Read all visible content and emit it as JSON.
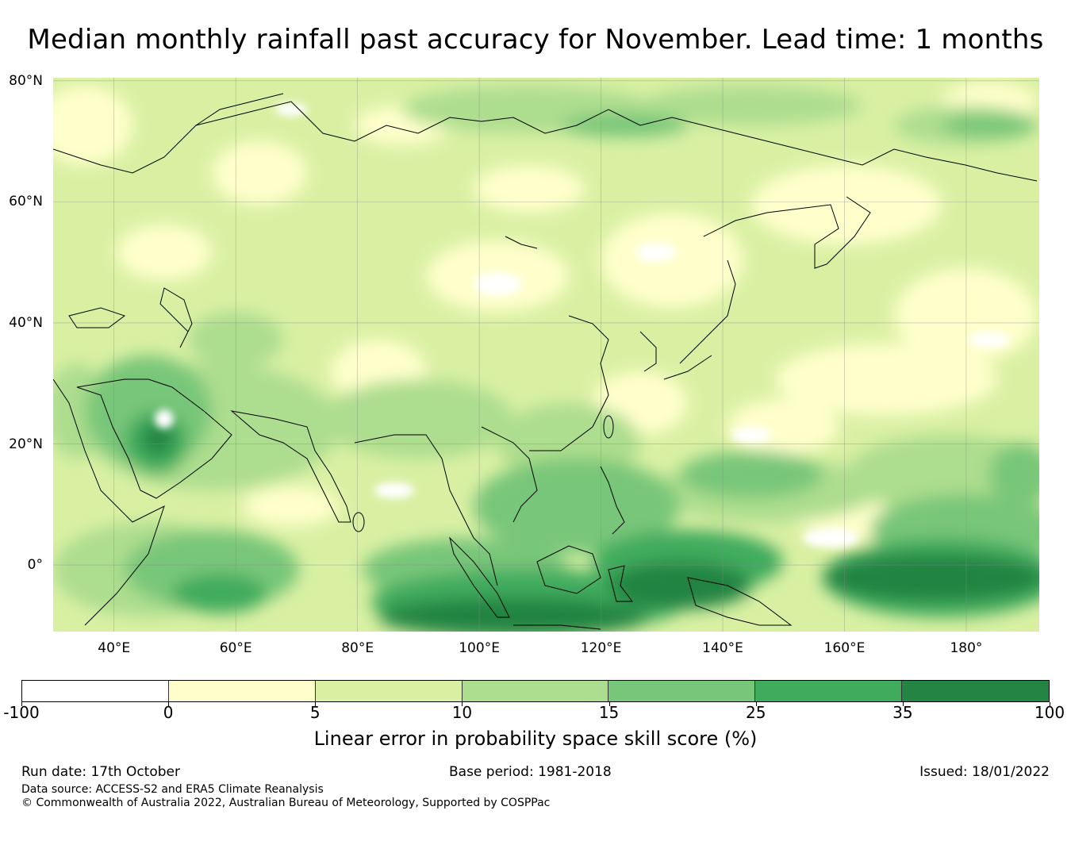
{
  "title": "Median monthly rainfall past accuracy for November. Lead time: 1 months",
  "map": {
    "lat_labels": [
      "80°N",
      "60°N",
      "40°N",
      "20°N",
      "0°"
    ],
    "lon_labels": [
      "40°E",
      "60°E",
      "80°E",
      "100°E",
      "120°E",
      "140°E",
      "160°E",
      "180°"
    ],
    "lat_values": [
      80,
      60,
      40,
      20,
      0
    ],
    "lon_values": [
      40,
      60,
      80,
      100,
      120,
      140,
      160,
      180
    ],
    "extent": {
      "lon_min": 30,
      "lon_max": 192,
      "lat_min": -11,
      "lat_max": 80.5
    }
  },
  "colorbar": {
    "ticks": [
      "-100",
      "0",
      "5",
      "10",
      "15",
      "25",
      "35",
      "100"
    ],
    "colors": [
      "#ffffff",
      "#ffffcc",
      "#d9f0a3",
      "#addd8e",
      "#78c679",
      "#41ab5d",
      "#238443"
    ],
    "label": "Linear error in probability space skill score (%)"
  },
  "footer": {
    "run_date": "Run date: 17th October",
    "base_period": "Base period: 1981-2018",
    "issued": "Issued: 18/01/2022",
    "data_source": "Data source: ACCESS-S2 and ERA5 Climate Reanalysis",
    "copyright": "© Commonwealth of Australia 2022, Australian Bureau of Meteorology, Supported by COSPPac"
  }
}
